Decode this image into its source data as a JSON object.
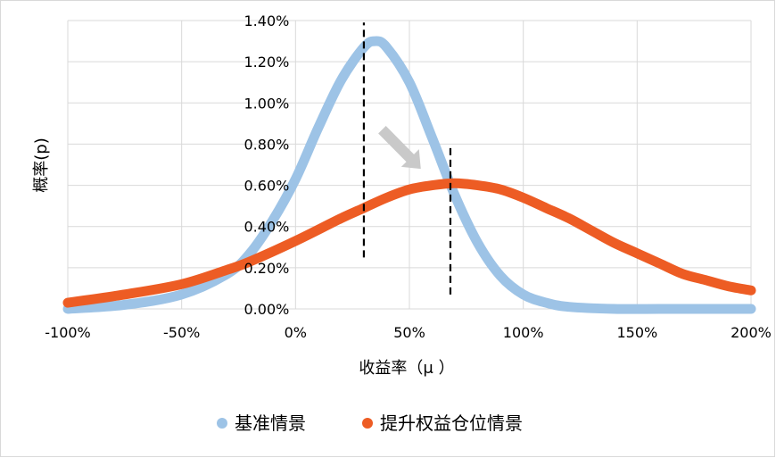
{
  "chart_data": {
    "type": "line",
    "title": "",
    "xlabel": "收益率（μ ）",
    "ylabel": "概率(p)",
    "x_ticks": [
      "-100%",
      "-50%",
      "0%",
      "50%",
      "100%",
      "150%",
      "200%"
    ],
    "y_ticks": [
      "0.00%",
      "0.20%",
      "0.40%",
      "0.60%",
      "0.80%",
      "1.00%",
      "1.20%",
      "1.40%"
    ],
    "xlim": [
      -1.0,
      2.0
    ],
    "ylim": [
      0,
      0.014
    ],
    "grid": true,
    "legend_position": "bottom",
    "series": [
      {
        "name": "基准情景",
        "color": "#9dc3e6",
        "x": [
          -1.0,
          -0.75,
          -0.5,
          -0.3,
          -0.2,
          -0.1,
          0.0,
          0.1,
          0.2,
          0.3,
          0.35,
          0.4,
          0.5,
          0.6,
          0.7,
          0.8,
          0.9,
          1.0,
          1.1,
          1.2,
          1.4,
          1.6,
          1.8,
          2.0
        ],
        "y": [
          0.0,
          0.0002,
          0.0007,
          0.0017,
          0.0027,
          0.0043,
          0.0063,
          0.0088,
          0.0111,
          0.0127,
          0.013,
          0.0127,
          0.011,
          0.0083,
          0.0055,
          0.0032,
          0.0016,
          0.0007,
          0.0003,
          0.0001,
          0.0,
          0.0,
          0.0,
          0.0
        ]
      },
      {
        "name": "提升权益仓位情景",
        "color": "#ed5c24",
        "x": [
          -1.0,
          -0.75,
          -0.5,
          -0.3,
          -0.2,
          0.0,
          0.2,
          0.3,
          0.4,
          0.5,
          0.6,
          0.7,
          0.8,
          0.9,
          1.0,
          1.1,
          1.2,
          1.3,
          1.4,
          1.5,
          1.6,
          1.7,
          1.8,
          1.9,
          2.0
        ],
        "y": [
          0.0003,
          0.0007,
          0.0012,
          0.0019,
          0.0023,
          0.0033,
          0.0044,
          0.0049,
          0.0054,
          0.0058,
          0.006,
          0.0061,
          0.006,
          0.0058,
          0.0054,
          0.0049,
          0.0044,
          0.0038,
          0.0032,
          0.0027,
          0.0022,
          0.0017,
          0.0014,
          0.0011,
          0.0009
        ]
      }
    ],
    "reference_lines": [
      {
        "x": 0.3,
        "y_from": 0.0025,
        "y_to": 0.0139,
        "style": "dashed",
        "color": "#000000"
      },
      {
        "x": 0.68,
        "y_from": 0.0007,
        "y_to": 0.008,
        "style": "dashed",
        "color": "#000000"
      }
    ],
    "arrow": {
      "color": "#c9c9c9",
      "from": [
        0.38,
        0.0087
      ],
      "to": [
        0.55,
        0.0068
      ]
    }
  }
}
